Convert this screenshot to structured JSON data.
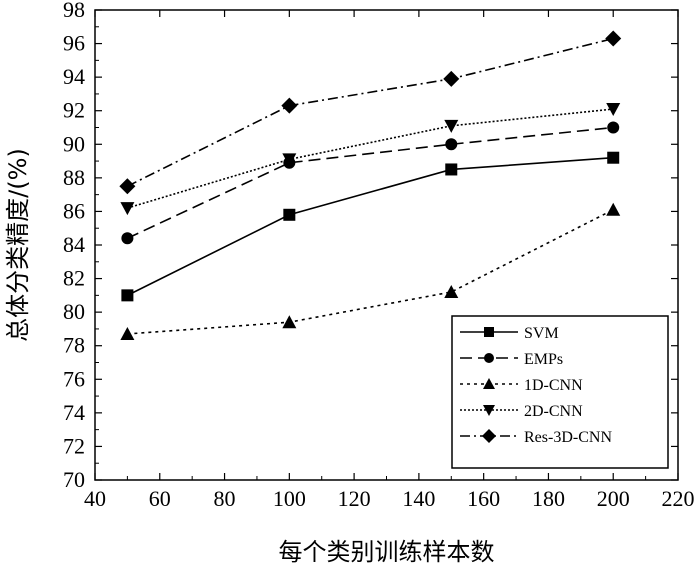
{
  "chart_data": {
    "type": "line",
    "xlabel": "每个类别训练样本数",
    "ylabel": "总体分类精度/(%)",
    "xlim": [
      40,
      220
    ],
    "ylim": [
      70,
      98
    ],
    "xticks": [
      40,
      60,
      80,
      100,
      120,
      140,
      160,
      180,
      200,
      220
    ],
    "yticks": [
      70,
      72,
      74,
      76,
      78,
      80,
      82,
      84,
      86,
      88,
      90,
      92,
      94,
      96,
      98
    ],
    "x": [
      50,
      100,
      150,
      200
    ],
    "legend_position": "bottom-right",
    "grid": false,
    "series": [
      {
        "name": "SVM",
        "values": [
          81.0,
          85.8,
          88.5,
          89.2
        ],
        "marker": "square",
        "dash": "solid"
      },
      {
        "name": "EMPs",
        "values": [
          84.4,
          88.9,
          90.0,
          91.0
        ],
        "marker": "circle",
        "dash": "dashed"
      },
      {
        "name": "1D-CNN",
        "values": [
          78.7,
          79.4,
          81.2,
          86.1
        ],
        "marker": "triangle-up",
        "dash": "dotted"
      },
      {
        "name": "2D-CNN",
        "values": [
          86.2,
          89.1,
          91.1,
          92.1
        ],
        "marker": "triangle-down",
        "dash": "dense-dotted"
      },
      {
        "name": "Res-3D-CNN",
        "values": [
          87.5,
          92.3,
          93.9,
          96.3
        ],
        "marker": "diamond",
        "dash": "dash-dot"
      }
    ]
  }
}
